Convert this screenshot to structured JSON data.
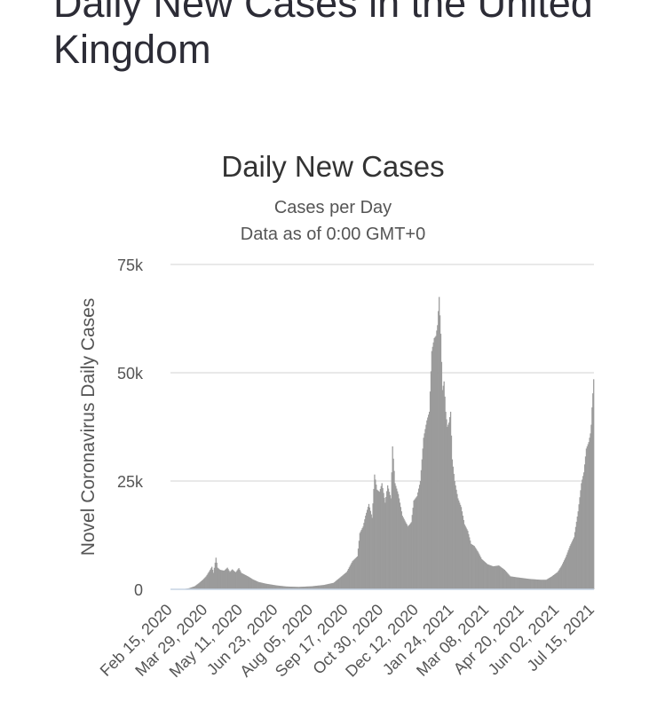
{
  "page": {
    "heading": "Daily New Cases in the United Kingdom"
  },
  "chart_data": {
    "type": "bar",
    "title": "Daily New Cases",
    "subtitle": "Cases per Day",
    "subtitle2": "Data as of 0:00 GMT+0",
    "ylabel": "Novel Coronavirus Daily Cases",
    "xlabel": "",
    "ylim": [
      0,
      75000
    ],
    "yticks": [
      0,
      25000,
      50000,
      75000
    ],
    "ytick_labels": [
      "0",
      "25k",
      "50k",
      "75k"
    ],
    "xlim": [
      "2020-02-15",
      "2021-07-17"
    ],
    "xtick_dates": [
      "2020-02-15",
      "2020-03-29",
      "2020-05-11",
      "2020-06-23",
      "2020-08-05",
      "2020-09-17",
      "2020-10-30",
      "2020-12-12",
      "2021-01-24",
      "2021-03-08",
      "2021-04-20",
      "2021-06-02",
      "2021-07-15"
    ],
    "xtick_labels": [
      "Feb 15, 2020",
      "Mar 29, 2020",
      "May 11, 2020",
      "Jun 23, 2020",
      "Aug 05, 2020",
      "Sep 17, 2020",
      "Oct 30, 2020",
      "Dec 12, 2020",
      "Jan 24, 2021",
      "Mar 08, 2021",
      "Apr 20, 2021",
      "Jun 02, 2021",
      "Jul 15, 2021"
    ],
    "grid": true,
    "legend": "none",
    "bar_color": "#9b9b9b",
    "series": [
      {
        "points": [
          [
            "2020-03-01",
            40
          ],
          [
            "2020-03-08",
            250
          ],
          [
            "2020-03-15",
            700
          ],
          [
            "2020-03-20",
            1400
          ],
          [
            "2020-03-25",
            2200
          ],
          [
            "2020-03-29",
            3000
          ],
          [
            "2020-04-02",
            4200
          ],
          [
            "2020-04-05",
            5200
          ],
          [
            "2020-04-07",
            3800
          ],
          [
            "2020-04-10",
            7300
          ],
          [
            "2020-04-12",
            5000
          ],
          [
            "2020-04-15",
            4500
          ],
          [
            "2020-04-20",
            4300
          ],
          [
            "2020-04-24",
            5000
          ],
          [
            "2020-04-27",
            4000
          ],
          [
            "2020-04-30",
            4600
          ],
          [
            "2020-05-04",
            3900
          ],
          [
            "2020-05-08",
            4900
          ],
          [
            "2020-05-11",
            3800
          ],
          [
            "2020-05-15",
            3400
          ],
          [
            "2020-05-20",
            2900
          ],
          [
            "2020-05-25",
            2300
          ],
          [
            "2020-06-01",
            1700
          ],
          [
            "2020-06-10",
            1300
          ],
          [
            "2020-06-23",
            900
          ],
          [
            "2020-07-05",
            650
          ],
          [
            "2020-07-20",
            550
          ],
          [
            "2020-08-05",
            700
          ],
          [
            "2020-08-20",
            1000
          ],
          [
            "2020-09-01",
            1500
          ],
          [
            "2020-09-10",
            2900
          ],
          [
            "2020-09-17",
            4000
          ],
          [
            "2020-09-24",
            6500
          ],
          [
            "2020-09-30",
            7600
          ],
          [
            "2020-10-03",
            13000
          ],
          [
            "2020-10-07",
            14500
          ],
          [
            "2020-10-10",
            17000
          ],
          [
            "2020-10-14",
            19700
          ],
          [
            "2020-10-18",
            16500
          ],
          [
            "2020-10-21",
            26500
          ],
          [
            "2020-10-24",
            23000
          ],
          [
            "2020-10-27",
            22500
          ],
          [
            "2020-10-30",
            24500
          ],
          [
            "2020-11-03",
            20000
          ],
          [
            "2020-11-06",
            24000
          ],
          [
            "2020-11-10",
            21000
          ],
          [
            "2020-11-12",
            33000
          ],
          [
            "2020-11-15",
            24500
          ],
          [
            "2020-11-19",
            22000
          ],
          [
            "2020-11-24",
            17000
          ],
          [
            "2020-11-28",
            15500
          ],
          [
            "2020-12-01",
            14500
          ],
          [
            "2020-12-05",
            15500
          ],
          [
            "2020-12-08",
            20500
          ],
          [
            "2020-12-12",
            21500
          ],
          [
            "2020-12-16",
            25000
          ],
          [
            "2020-12-20",
            35000
          ],
          [
            "2020-12-24",
            39000
          ],
          [
            "2020-12-27",
            41000
          ],
          [
            "2020-12-30",
            55000
          ],
          [
            "2021-01-02",
            58000
          ],
          [
            "2021-01-04",
            58500
          ],
          [
            "2021-01-06",
            61000
          ],
          [
            "2021-01-08",
            67500
          ],
          [
            "2021-01-10",
            59000
          ],
          [
            "2021-01-12",
            46000
          ],
          [
            "2021-01-14",
            48000
          ],
          [
            "2021-01-16",
            41000
          ],
          [
            "2021-01-18",
            37500
          ],
          [
            "2021-01-20",
            38500
          ],
          [
            "2021-01-22",
            41000
          ],
          [
            "2021-01-24",
            30000
          ],
          [
            "2021-01-27",
            25000
          ],
          [
            "2021-01-31",
            21000
          ],
          [
            "2021-02-04",
            19000
          ],
          [
            "2021-02-08",
            15000
          ],
          [
            "2021-02-12",
            13500
          ],
          [
            "2021-02-16",
            10500
          ],
          [
            "2021-02-20",
            10000
          ],
          [
            "2021-02-25",
            8500
          ],
          [
            "2021-03-01",
            7000
          ],
          [
            "2021-03-08",
            5800
          ],
          [
            "2021-03-15",
            5300
          ],
          [
            "2021-03-22",
            5500
          ],
          [
            "2021-03-29",
            4500
          ],
          [
            "2021-04-05",
            3000
          ],
          [
            "2021-04-12",
            2800
          ],
          [
            "2021-04-20",
            2600
          ],
          [
            "2021-04-28",
            2400
          ],
          [
            "2021-05-05",
            2300
          ],
          [
            "2021-05-12",
            2200
          ],
          [
            "2021-05-19",
            2200
          ],
          [
            "2021-05-26",
            3000
          ],
          [
            "2021-06-02",
            4000
          ],
          [
            "2021-06-07",
            5500
          ],
          [
            "2021-06-12",
            7500
          ],
          [
            "2021-06-17",
            10000
          ],
          [
            "2021-06-22",
            12000
          ],
          [
            "2021-06-27",
            18000
          ],
          [
            "2021-07-01",
            24500
          ],
          [
            "2021-07-04",
            27000
          ],
          [
            "2021-07-07",
            32500
          ],
          [
            "2021-07-10",
            34000
          ],
          [
            "2021-07-12",
            36000
          ],
          [
            "2021-07-13",
            38000
          ],
          [
            "2021-07-14",
            42000
          ],
          [
            "2021-07-16",
            48500
          ]
        ]
      }
    ]
  }
}
